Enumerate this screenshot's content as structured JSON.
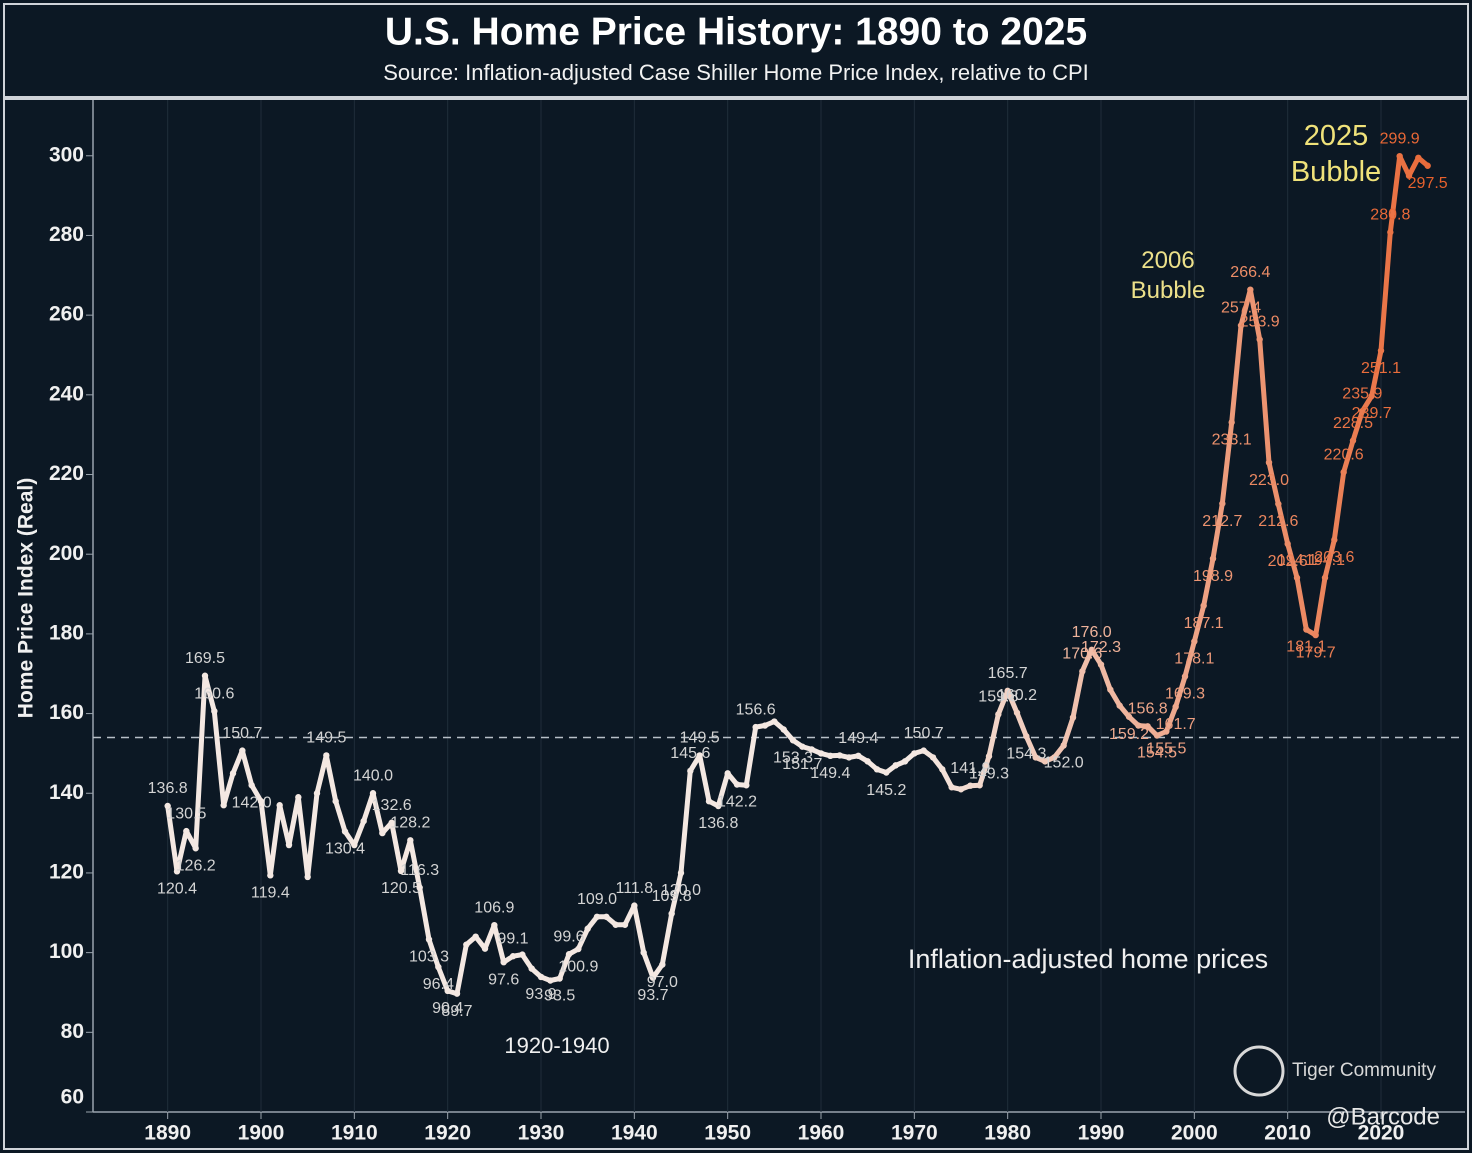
{
  "chart_data": {
    "type": "line",
    "title": "U.S. Home Price History: 1890 to 2025",
    "subtitle": "Source: Inflation-adjusted Case Shiller Home Price Index, relative to CPI",
    "y_label": "Home Price Index (Real)",
    "x": [
      1890,
      1891,
      1892,
      1893,
      1894,
      1895,
      1896,
      1897,
      1898,
      1899,
      1900,
      1901,
      1902,
      1903,
      1904,
      1905,
      1906,
      1907,
      1908,
      1909,
      1910,
      1911,
      1912,
      1913,
      1914,
      1915,
      1916,
      1917,
      1918,
      1919,
      1920,
      1921,
      1922,
      1923,
      1924,
      1925,
      1926,
      1927,
      1928,
      1929,
      1930,
      1931,
      1932,
      1933,
      1934,
      1935,
      1936,
      1937,
      1938,
      1939,
      1940,
      1941,
      1942,
      1943,
      1944,
      1945,
      1946,
      1947,
      1948,
      1949,
      1950,
      1951,
      1952,
      1953,
      1954,
      1955,
      1956,
      1957,
      1958,
      1959,
      1960,
      1961,
      1962,
      1963,
      1964,
      1965,
      1966,
      1967,
      1968,
      1969,
      1970,
      1971,
      1972,
      1973,
      1974,
      1975,
      1976,
      1977,
      1978,
      1979,
      1980,
      1981,
      1982,
      1983,
      1984,
      1985,
      1986,
      1987,
      1988,
      1989,
      1990,
      1991,
      1992,
      1993,
      1994,
      1995,
      1996,
      1997,
      1998,
      1999,
      2000,
      2001,
      2002,
      2003,
      2004,
      2005,
      2006,
      2007,
      2008,
      2009,
      2010,
      2011,
      2012,
      2013,
      2014,
      2015,
      2016,
      2017,
      2018,
      2019,
      2020,
      2021,
      2022,
      2023,
      2024,
      2025
    ],
    "series": [
      {
        "colors": [
          "#f4e8e2",
          "#e8622e"
        ],
        "values": [
          136.8,
          120.4,
          130.5,
          126.2,
          169.5,
          160.6,
          137,
          145,
          150.7,
          142,
          138,
          119.4,
          137,
          127,
          139,
          119,
          140,
          149.5,
          138,
          130.4,
          127,
          133,
          140,
          130,
          132.6,
          120.5,
          128.2,
          116.3,
          103.3,
          96.4,
          90.4,
          89.7,
          102,
          104,
          101,
          106.9,
          97.6,
          99.1,
          99.5,
          96,
          93.9,
          93,
          93.5,
          99.6,
          100.9,
          106,
          109,
          109,
          107,
          107,
          111.8,
          100,
          93.7,
          97,
          109.8,
          120,
          145.6,
          149.5,
          138,
          136.8,
          145,
          142.2,
          142,
          156.6,
          157,
          158,
          156,
          153.3,
          151.7,
          151,
          150,
          149.4,
          149.5,
          149,
          149.4,
          148,
          146,
          145.2,
          147,
          148,
          150,
          150.7,
          149,
          146,
          141.5,
          141,
          141.9,
          142,
          149.3,
          159.8,
          165.7,
          160.2,
          154.3,
          149,
          148,
          149,
          152,
          159,
          170.6,
          176,
          172.3,
          166,
          162,
          159.2,
          157,
          156.8,
          154.5,
          155.5,
          161.7,
          169.3,
          178.1,
          187.1,
          198.9,
          212.7,
          233.1,
          257.4,
          266.4,
          253.9,
          223,
          212.6,
          202.6,
          194.1,
          181.1,
          179.7,
          194.1,
          203.6,
          220.6,
          228.5,
          235.9,
          239.7,
          251.1,
          280.8,
          299.9,
          295,
          299.5,
          297.5
        ],
        "value_labels": [
          "136.8",
          "120.4",
          "130.5",
          "126.2",
          "169.5",
          "160.6",
          null,
          null,
          "150.7",
          "142.0",
          null,
          "119.4",
          null,
          null,
          null,
          null,
          null,
          "149.5",
          null,
          "130.4",
          null,
          null,
          "140.0",
          null,
          "132.6",
          "120.5",
          "128.2",
          "116.3",
          "103.3",
          "96.4",
          "90.4",
          "89.7",
          null,
          null,
          null,
          "106.9",
          "97.6",
          "99.1",
          null,
          null,
          "93.9",
          null,
          "93.5",
          "99.6",
          "100.9",
          null,
          "109.0",
          null,
          null,
          null,
          "111.8",
          null,
          "93.7",
          "97.0",
          "109.8",
          "120.0",
          "145.6",
          "149.5",
          null,
          "136.8",
          null,
          "142.2",
          null,
          "156.6",
          null,
          null,
          null,
          "153.3",
          "151.7",
          null,
          null,
          "149.4",
          null,
          null,
          "149.4",
          null,
          null,
          "145.2",
          null,
          null,
          null,
          "150.7",
          null,
          null,
          null,
          null,
          "141.9",
          null,
          "149.3",
          "159.8",
          "165.7",
          "160.2",
          "154.3",
          null,
          null,
          null,
          "152.0",
          null,
          "170.6",
          "176.0",
          "172.3",
          null,
          null,
          "159.2",
          null,
          "156.8",
          "154.5",
          "155.5",
          "161.7",
          "169.3",
          "178.1",
          "187.1",
          "198.9",
          "212.7",
          "233.1",
          "257.4",
          "266.4",
          "253.9",
          "223.0",
          "212.6",
          "202.6",
          "194.1",
          "181.1",
          "179.7",
          "194.1",
          "203.6",
          "220.6",
          "228.5",
          "235.9",
          "239.7",
          "251.1",
          "280.8",
          "299.9",
          null,
          null,
          "297.5"
        ]
      }
    ],
    "xlim": [
      1882,
      2029
    ],
    "ylim": [
      60,
      314
    ],
    "xticks": [
      1890,
      1900,
      1910,
      1920,
      1930,
      1940,
      1950,
      1960,
      1970,
      1980,
      1990,
      2000,
      2010,
      2020
    ],
    "yticks": [
      60,
      80,
      100,
      120,
      140,
      160,
      180,
      200,
      220,
      240,
      260,
      280,
      300
    ],
    "reference_line": 154,
    "annotations": [
      "2025\nBubble",
      "2006\nBubble",
      "1920-1940",
      "Inflation-adjusted home prices"
    ],
    "watermarks": [
      "Tiger Community",
      "@Barcode"
    ]
  }
}
